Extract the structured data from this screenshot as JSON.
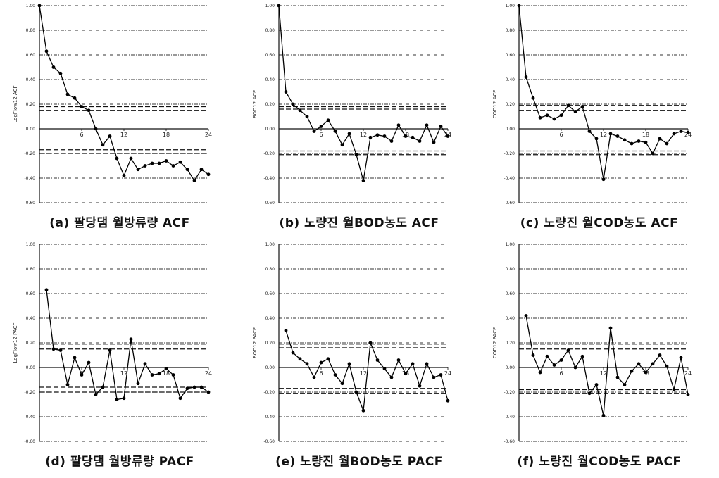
{
  "chart_data": [
    {
      "type": "line",
      "caption": "(a) 팔당댐 월방류량 ACF",
      "ylabel": "LogFlow12 ACF",
      "ylim": [
        -0.6,
        1.0
      ],
      "y_ticks": [
        "1.00",
        "0.80",
        "0.60",
        "0.40",
        "0.20",
        "0.00",
        "-0.20",
        "-0.40",
        "-0.60"
      ],
      "x_ticks": [
        "6",
        "12",
        "18",
        "24"
      ],
      "confidence_bounds": [
        0.18,
        0.15,
        -0.17,
        -0.2
      ],
      "grid": true,
      "series": [
        {
          "x": [
            0,
            1,
            2,
            3,
            4,
            5,
            6,
            7,
            8,
            9,
            10,
            11,
            12,
            13,
            14,
            15,
            16,
            17,
            18,
            19,
            20,
            21,
            22,
            23,
            24
          ],
          "values": [
            1.0,
            0.63,
            0.5,
            0.45,
            0.28,
            0.25,
            0.18,
            0.15,
            0.0,
            -0.13,
            -0.06,
            -0.24,
            -0.38,
            -0.24,
            -0.33,
            -0.3,
            -0.28,
            -0.28,
            -0.26,
            -0.3,
            -0.27,
            -0.33,
            -0.42,
            -0.33,
            -0.37
          ]
        }
      ]
    },
    {
      "type": "line",
      "caption": "(b) 노량진 월BOD농도 ACF",
      "ylabel": "BOD12 ACF",
      "ylim": [
        -0.6,
        1.0
      ],
      "y_ticks": [
        "1.00",
        "0.80",
        "0.60",
        "0.40",
        "0.20",
        "0.00",
        "-0.20",
        "-0.40",
        "-0.60"
      ],
      "x_ticks": [
        "6",
        "12",
        "18",
        "24"
      ],
      "confidence_bounds": [
        0.18,
        0.16,
        -0.18,
        -0.21
      ],
      "grid": true,
      "series": [
        {
          "x": [
            0,
            1,
            2,
            3,
            4,
            5,
            6,
            7,
            8,
            9,
            10,
            11,
            12,
            13,
            14,
            15,
            16,
            17,
            18,
            19,
            20,
            21,
            22,
            23,
            24
          ],
          "values": [
            1.0,
            0.3,
            0.2,
            0.15,
            0.1,
            -0.02,
            0.02,
            0.07,
            -0.02,
            -0.13,
            -0.04,
            -0.21,
            -0.42,
            -0.07,
            -0.05,
            -0.06,
            -0.1,
            0.03,
            -0.06,
            -0.07,
            -0.1,
            0.03,
            -0.11,
            0.02,
            -0.06
          ]
        }
      ]
    },
    {
      "type": "line",
      "caption": "(c) 노량진 월COD농도 ACF",
      "ylabel": "COD12 ACF",
      "ylim": [
        -0.6,
        1.0
      ],
      "y_ticks": [
        "1.00",
        "0.80",
        "0.60",
        "0.40",
        "0.20",
        "0.00",
        "-0.20",
        "-0.40",
        "-0.60"
      ],
      "x_ticks": [
        "6",
        "12",
        "18",
        "24"
      ],
      "confidence_bounds": [
        0.19,
        0.15,
        -0.18,
        -0.21
      ],
      "grid": true,
      "series": [
        {
          "x": [
            0,
            1,
            2,
            3,
            4,
            5,
            6,
            7,
            8,
            9,
            10,
            11,
            12,
            13,
            14,
            15,
            16,
            17,
            18,
            19,
            20,
            21,
            22,
            23,
            24
          ],
          "values": [
            1.0,
            0.42,
            0.25,
            0.09,
            0.11,
            0.08,
            0.11,
            0.19,
            0.14,
            0.18,
            -0.02,
            -0.08,
            -0.41,
            -0.04,
            -0.06,
            -0.09,
            -0.12,
            -0.1,
            -0.11,
            -0.2,
            -0.08,
            -0.12,
            -0.04,
            -0.02,
            -0.03
          ]
        }
      ]
    },
    {
      "type": "line",
      "caption": "(d) 팔당댐 월방류량 PACF",
      "ylabel": "LogFlow12 PACF",
      "ylim": [
        -0.6,
        1.0
      ],
      "y_ticks": [
        "1.00",
        "0.80",
        "0.60",
        "0.40",
        "0.20",
        "0.00",
        "-0.20",
        "-0.40",
        "-0.60"
      ],
      "x_ticks": [
        "6",
        "12",
        "18",
        "24"
      ],
      "confidence_bounds": [
        0.19,
        0.15,
        -0.16,
        -0.2
      ],
      "grid": true,
      "series": [
        {
          "x": [
            1,
            2,
            3,
            4,
            5,
            6,
            7,
            8,
            9,
            10,
            11,
            12,
            13,
            14,
            15,
            16,
            17,
            18,
            19,
            20,
            21,
            22,
            23,
            24
          ],
          "values": [
            0.63,
            0.15,
            0.14,
            -0.14,
            0.08,
            -0.06,
            0.04,
            -0.22,
            -0.16,
            0.14,
            -0.26,
            -0.25,
            0.23,
            -0.13,
            0.03,
            -0.06,
            -0.05,
            -0.01,
            -0.06,
            -0.25,
            -0.17,
            -0.16,
            -0.16,
            -0.2
          ]
        }
      ]
    },
    {
      "type": "line",
      "caption": "(e) 노량진 월BOD농도 PACF",
      "ylabel": "BOD12 PACF",
      "ylim": [
        -0.6,
        1.0
      ],
      "y_ticks": [
        "1.00",
        "0.80",
        "0.60",
        "0.40",
        "0.20",
        "0.00",
        "-0.20",
        "-0.40",
        "-0.60"
      ],
      "x_ticks": [
        "6",
        "12",
        "18",
        "24"
      ],
      "confidence_bounds": [
        0.19,
        0.16,
        -0.17,
        -0.21
      ],
      "grid": true,
      "series": [
        {
          "x": [
            1,
            2,
            3,
            4,
            5,
            6,
            7,
            8,
            9,
            10,
            11,
            12,
            13,
            14,
            15,
            16,
            17,
            18,
            19,
            20,
            21,
            22,
            23,
            24
          ],
          "values": [
            0.3,
            0.12,
            0.07,
            0.03,
            -0.08,
            0.04,
            0.07,
            -0.06,
            -0.13,
            0.03,
            -0.2,
            -0.35,
            0.2,
            0.06,
            -0.01,
            -0.08,
            0.06,
            -0.05,
            0.03,
            -0.15,
            0.03,
            -0.08,
            -0.06,
            -0.27
          ]
        }
      ]
    },
    {
      "type": "line",
      "caption": "(f) 노량진 월COD농도 PACF",
      "ylabel": "COD12 PACF",
      "ylim": [
        -0.6,
        1.0
      ],
      "y_ticks": [
        "1.00",
        "0.80",
        "0.60",
        "0.40",
        "0.20",
        "0.00",
        "-0.20",
        "-0.40",
        "-0.60"
      ],
      "x_ticks": [
        "6",
        "12",
        "18",
        "24"
      ],
      "confidence_bounds": [
        0.19,
        0.15,
        -0.18,
        -0.21
      ],
      "grid": true,
      "series": [
        {
          "x": [
            1,
            2,
            3,
            4,
            5,
            6,
            7,
            8,
            9,
            10,
            11,
            12,
            13,
            14,
            15,
            16,
            17,
            18,
            19,
            20,
            21,
            22,
            23,
            24
          ],
          "values": [
            0.42,
            0.1,
            -0.04,
            0.09,
            0.02,
            0.06,
            0.14,
            0.0,
            0.09,
            -0.21,
            -0.14,
            -0.39,
            0.32,
            -0.08,
            -0.14,
            -0.03,
            0.03,
            -0.04,
            0.03,
            0.1,
            0.01,
            -0.18,
            0.08,
            -0.22
          ]
        }
      ]
    }
  ]
}
